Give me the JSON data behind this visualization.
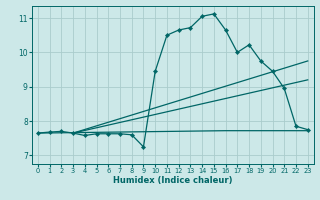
{
  "xlabel": "Humidex (Indice chaleur)",
  "bg_color": "#cce8e8",
  "grid_color": "#aacccc",
  "line_color": "#006666",
  "xlim": [
    -0.5,
    23.5
  ],
  "ylim": [
    6.75,
    11.35
  ],
  "yticks": [
    7,
    8,
    9,
    10,
    11
  ],
  "xticks": [
    0,
    1,
    2,
    3,
    4,
    5,
    6,
    7,
    8,
    9,
    10,
    11,
    12,
    13,
    14,
    15,
    16,
    17,
    18,
    19,
    20,
    21,
    22,
    23
  ],
  "series": [
    [
      0,
      7.65
    ],
    [
      1,
      7.68
    ],
    [
      2,
      7.7
    ],
    [
      3,
      7.65
    ],
    [
      4,
      7.58
    ],
    [
      5,
      7.63
    ],
    [
      6,
      7.63
    ],
    [
      7,
      7.63
    ],
    [
      8,
      7.6
    ],
    [
      9,
      7.25
    ],
    [
      10,
      9.45
    ],
    [
      11,
      10.5
    ],
    [
      12,
      10.65
    ],
    [
      13,
      10.72
    ],
    [
      14,
      11.05
    ],
    [
      15,
      11.12
    ],
    [
      16,
      10.65
    ],
    [
      17,
      10.0
    ],
    [
      18,
      10.22
    ],
    [
      19,
      9.75
    ],
    [
      20,
      9.45
    ],
    [
      21,
      8.95
    ],
    [
      22,
      7.85
    ],
    [
      23,
      7.75
    ]
  ],
  "line_upper": [
    [
      3,
      7.65
    ],
    [
      23,
      9.75
    ]
  ],
  "line_lower": [
    [
      3,
      7.65
    ],
    [
      23,
      9.2
    ]
  ],
  "line_flat": [
    [
      0,
      7.65
    ],
    [
      16,
      7.72
    ],
    [
      23,
      7.72
    ]
  ]
}
